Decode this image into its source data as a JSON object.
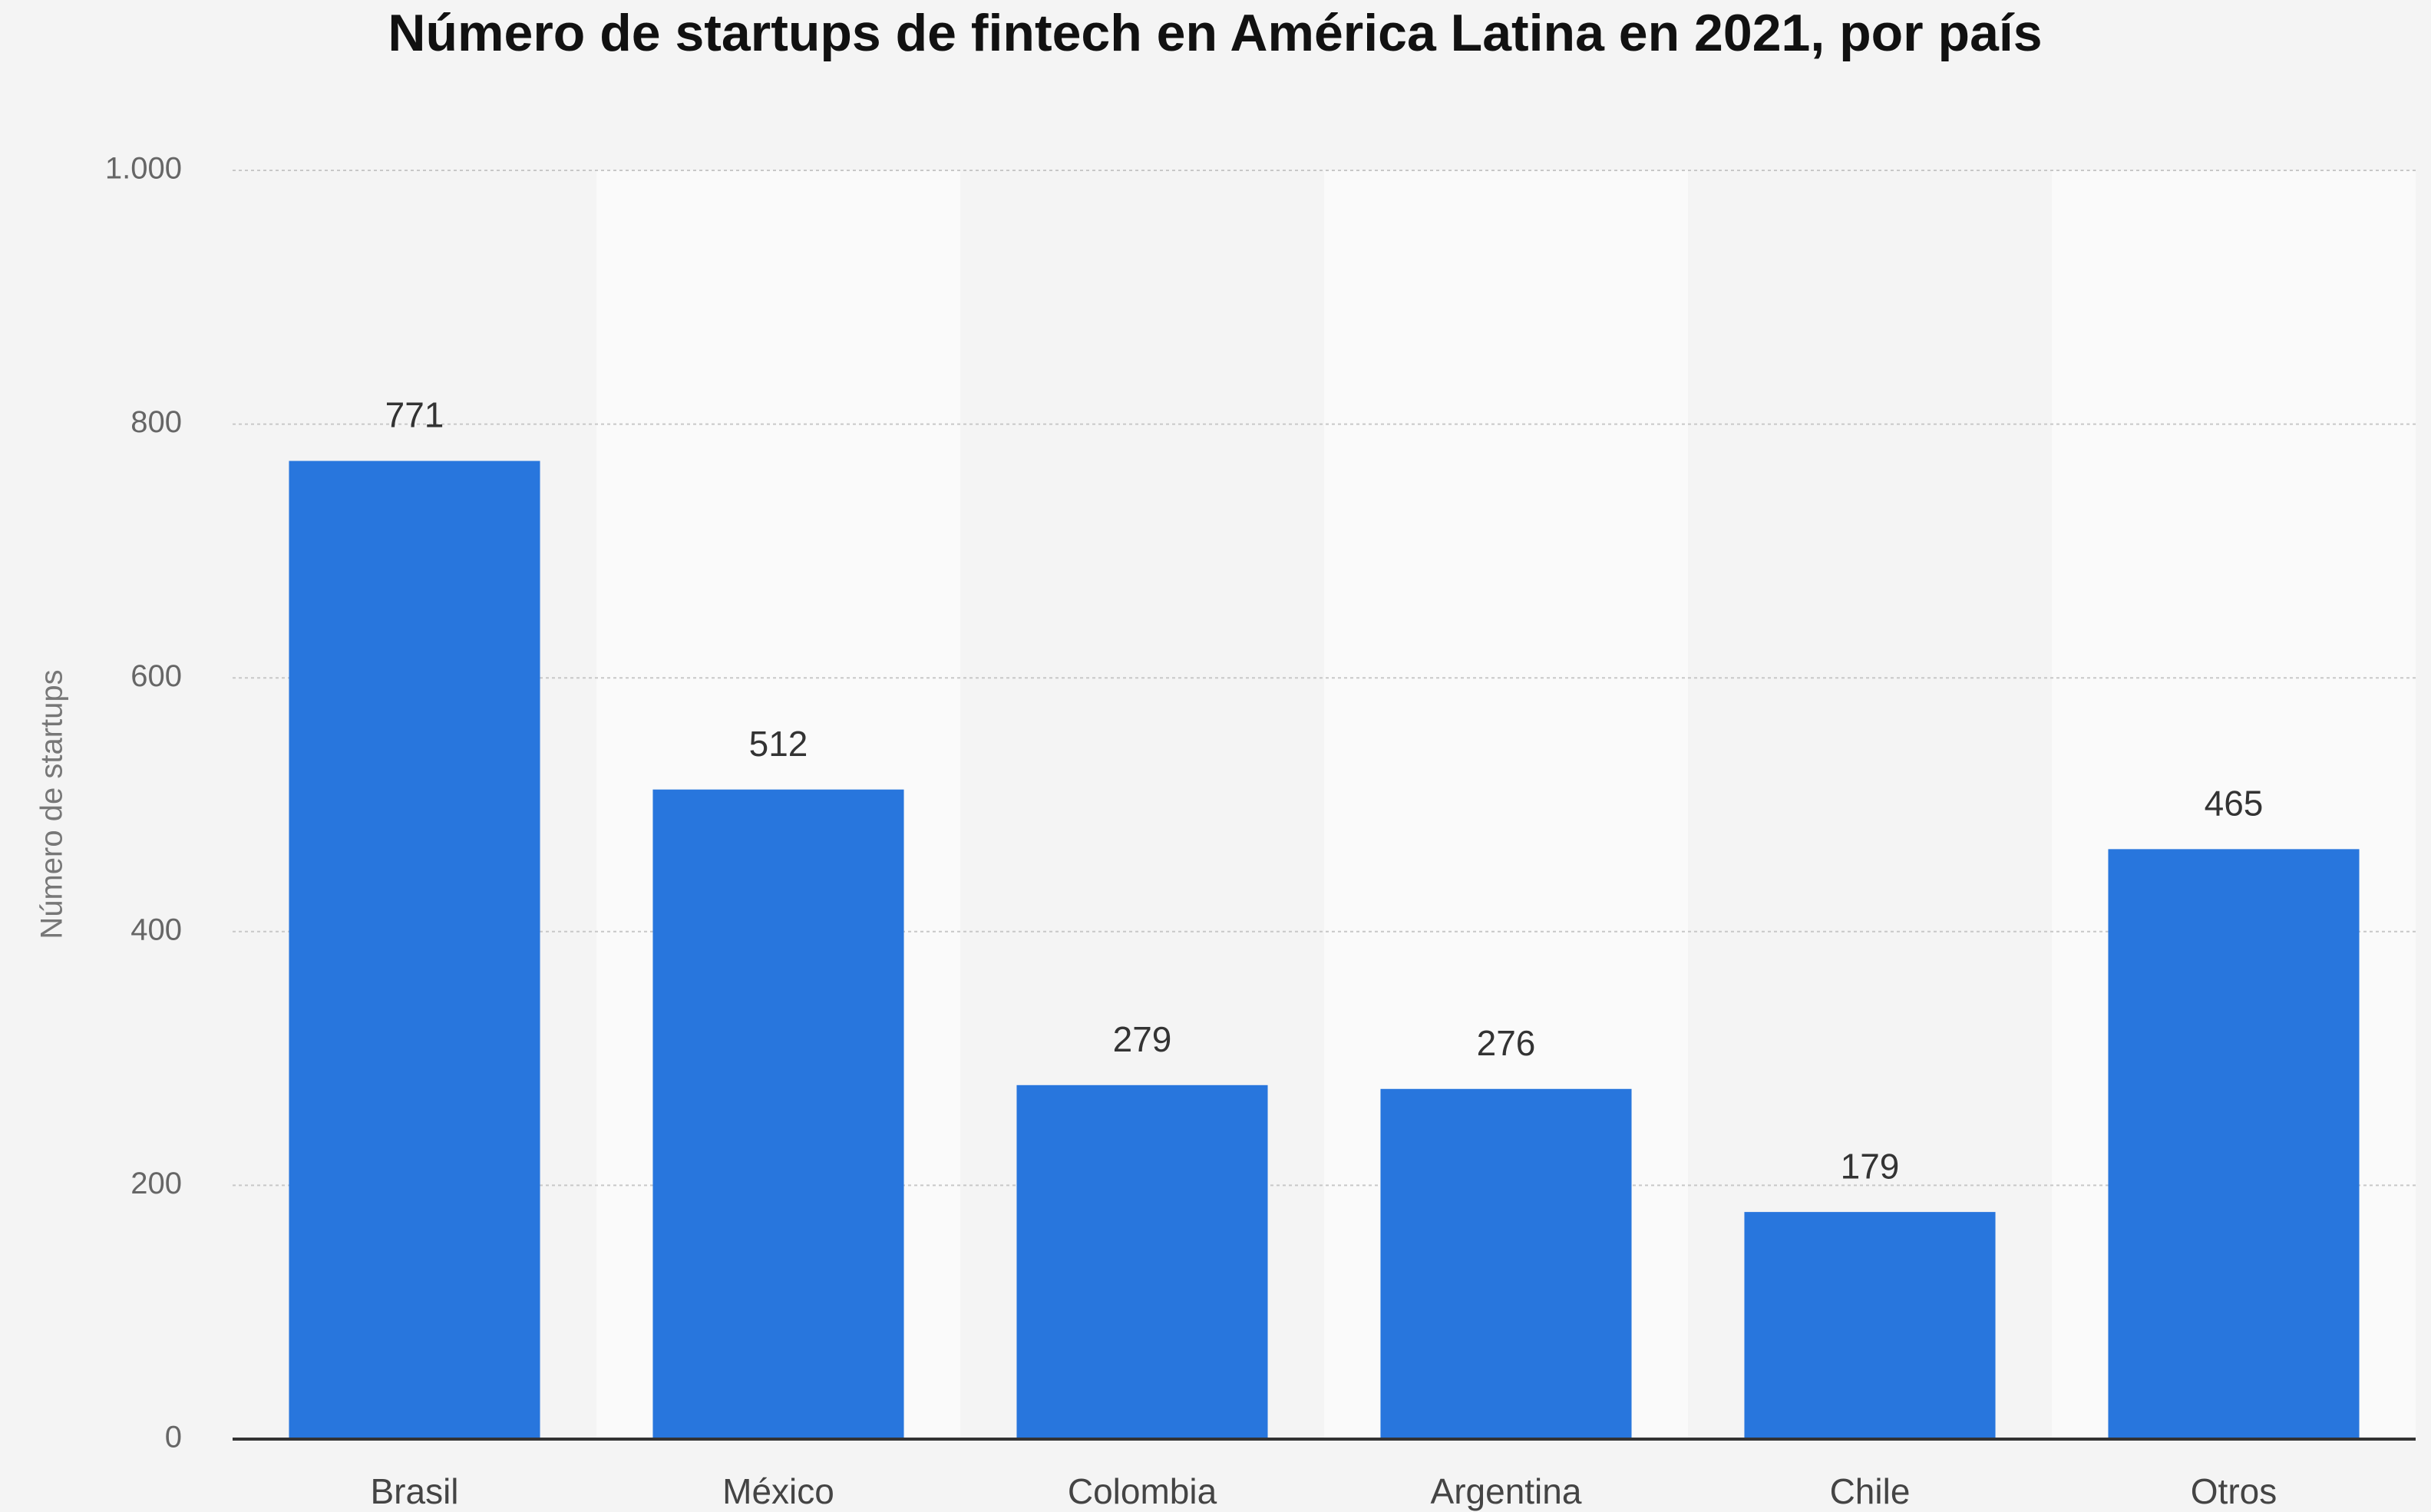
{
  "chart_data": {
    "type": "bar",
    "title": "Número de startups de fintech en América Latina en 2021, por país",
    "y_label": "Número de startups",
    "categories": [
      "Brasil",
      "México",
      "Colombia",
      "Argentina",
      "Chile",
      "Otros"
    ],
    "values": [
      771,
      512,
      279,
      276,
      179,
      465
    ],
    "color": "#2876dd",
    "ylim": [
      0,
      1000
    ],
    "yticks": [
      0,
      200,
      400,
      600,
      800,
      {
        "value": 1000,
        "label": "1.000"
      }
    ],
    "grid": true
  }
}
